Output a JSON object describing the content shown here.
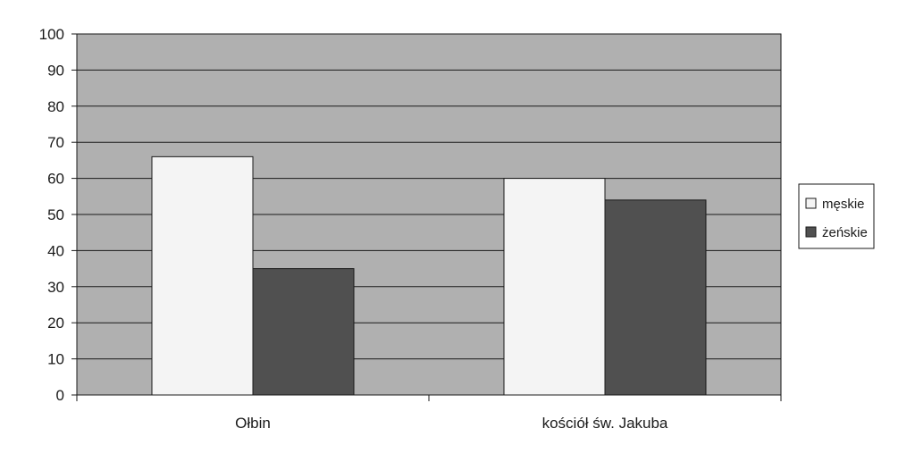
{
  "colors": {
    "plot_background": "#b0b0b0",
    "gridline": "#1a1a1a",
    "series_meskie": "#f4f4f4",
    "series_zenskie": "#505050",
    "bar_stroke": "#1a1a1a"
  },
  "chart_data": {
    "type": "bar",
    "title": "",
    "xlabel": "",
    "ylabel": "",
    "categories": [
      "Ołbin",
      "kościół św. Jakuba"
    ],
    "series": [
      {
        "name": "męskie",
        "values": [
          66,
          60
        ]
      },
      {
        "name": "żeńskie",
        "values": [
          35,
          54
        ]
      }
    ],
    "ylim": [
      0,
      100
    ],
    "yticks": [
      "0",
      "10",
      "20",
      "30",
      "40",
      "50",
      "60",
      "70",
      "80",
      "90",
      "100"
    ],
    "grid": true,
    "legend_position": "right"
  }
}
